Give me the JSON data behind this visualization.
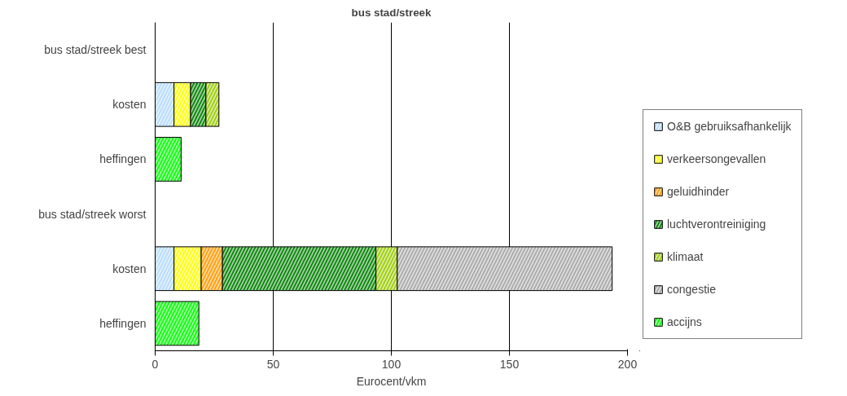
{
  "chart_data": {
    "type": "bar",
    "orientation": "horizontal",
    "stacked": true,
    "title": "bus stad/streek",
    "xlabel": "Eurocent/vkm",
    "categories": [
      "bus stad/streek best",
      "kosten",
      "heffingen",
      "bus stad/streek worst",
      "kosten",
      "heffingen"
    ],
    "series": [
      {
        "name": "O&B gebruiksafhankelijk",
        "color": "#b3d9ff",
        "values": [
          null,
          8,
          null,
          null,
          8,
          null
        ]
      },
      {
        "name": "verkeersongevallen",
        "color": "#ffff00",
        "values": [
          null,
          7,
          null,
          null,
          11.5,
          null
        ]
      },
      {
        "name": "geluidhinder",
        "color": "#ff9900",
        "values": [
          null,
          null,
          null,
          null,
          9,
          null
        ]
      },
      {
        "name": "luchtverontreiniging",
        "color": "#008000",
        "values": [
          null,
          6.5,
          null,
          null,
          65,
          null
        ]
      },
      {
        "name": "klimaat",
        "color": "#99cc00",
        "values": [
          null,
          5.5,
          null,
          null,
          9,
          null
        ]
      },
      {
        "name": "congestie",
        "color": "#a6a6a6",
        "values": [
          null,
          null,
          null,
          null,
          91,
          null
        ]
      },
      {
        "name": "accijns",
        "color": "#00ff00",
        "values": [
          null,
          null,
          11,
          null,
          null,
          18.5
        ]
      }
    ],
    "xlim": [
      0,
      200
    ],
    "xticks": [
      0,
      50,
      100,
      150,
      200
    ],
    "grid": "x",
    "legend": "right"
  }
}
